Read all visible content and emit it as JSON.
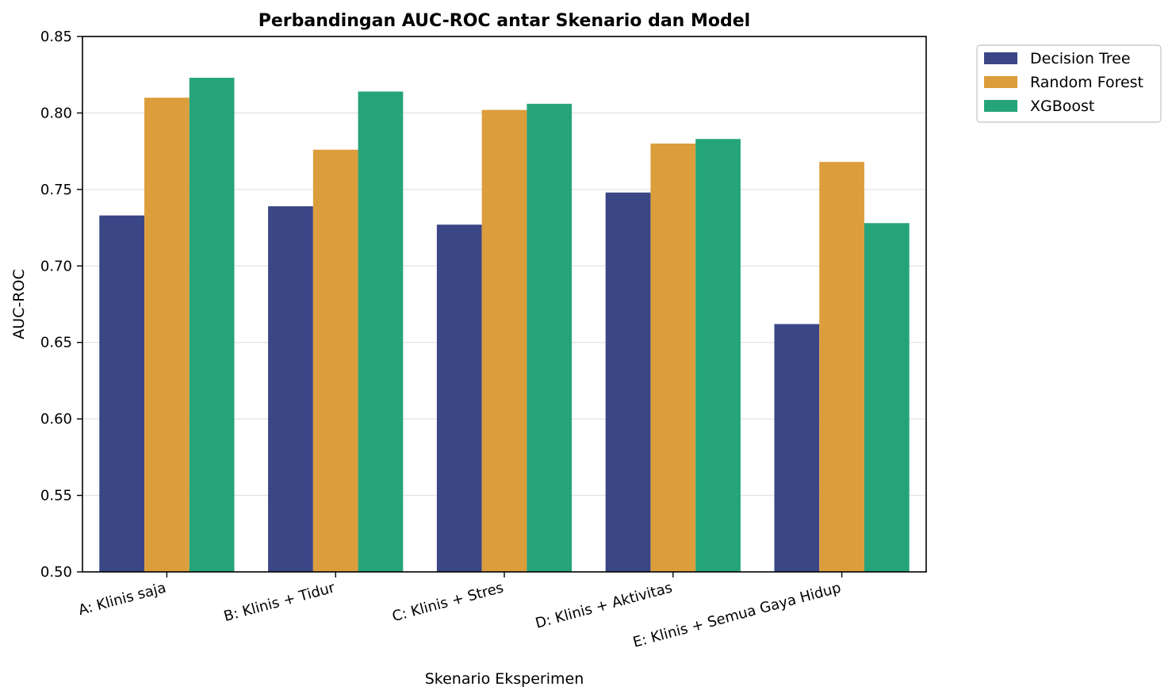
{
  "chart_data": {
    "type": "bar",
    "title": "Perbandingan AUC-ROC antar Skenario dan Model",
    "xlabel": "Skenario Eksperimen",
    "ylabel": "AUC-ROC",
    "ylim": [
      0.5,
      0.85
    ],
    "yticks": [
      "0.50",
      "0.55",
      "0.60",
      "0.65",
      "0.70",
      "0.75",
      "0.80",
      "0.85"
    ],
    "grid": true,
    "legend_position": "outside-top-right",
    "categories": [
      "A: Klinis saja",
      "B: Klinis + Tidur",
      "C: Klinis + Stres",
      "D: Klinis + Aktivitas",
      "E: Klinis + Semua Gaya Hidup"
    ],
    "series": [
      {
        "name": "Decision Tree",
        "color": "#3a4685",
        "values": [
          0.733,
          0.739,
          0.727,
          0.748,
          0.662
        ]
      },
      {
        "name": "Random Forest",
        "color": "#dc9e3c",
        "values": [
          0.81,
          0.776,
          0.802,
          0.78,
          0.768
        ]
      },
      {
        "name": "XGBoost",
        "color": "#25a47a",
        "values": [
          0.823,
          0.814,
          0.806,
          0.783,
          0.728
        ]
      }
    ]
  }
}
